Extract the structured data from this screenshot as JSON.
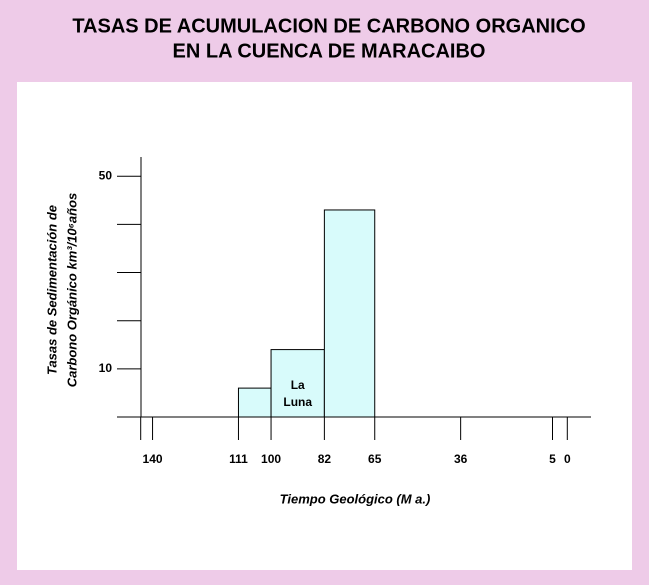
{
  "chart_data": {
    "type": "histogram",
    "title": [
      "TASAS DE ACUMULACION DE CARBONO ORGANICO",
      "EN LA CUENCA DE MARACAIBO"
    ],
    "y_label": [
      "Tasas de Sedimentación de",
      "Carbono Orgánico km³/10⁶años"
    ],
    "x_label": "Tiempo Geológico (M a.)",
    "bins": [
      111,
      100,
      82,
      65
    ],
    "values": [
      6,
      14,
      43
    ],
    "color": "#d8fbfb",
    "annotation": [
      "La",
      "Luna"
    ],
    "xlim": [
      152,
      -8
    ],
    "xticks": [
      140,
      111,
      100,
      82,
      65,
      36,
      5,
      0
    ],
    "xminor_ticks": [
      144
    ],
    "ylim": [
      0,
      54
    ],
    "yticks": [
      10,
      50
    ],
    "yminor_ticks": [
      20,
      30,
      40
    ]
  }
}
